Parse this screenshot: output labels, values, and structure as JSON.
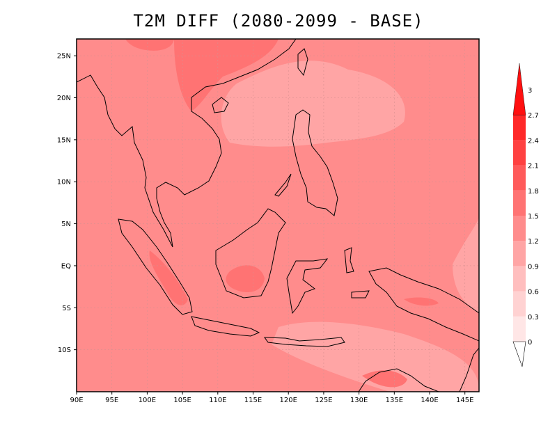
{
  "title": "T2M DIFF (2080-2099 - BASE)",
  "map": {
    "lon_range": [
      90,
      147
    ],
    "lat_range": [
      -15,
      27
    ],
    "lon_ticks": [
      {
        "value": 90,
        "label": "90E"
      },
      {
        "value": 95,
        "label": "95E"
      },
      {
        "value": 100,
        "label": "100E"
      },
      {
        "value": 105,
        "label": "105E"
      },
      {
        "value": 110,
        "label": "110E"
      },
      {
        "value": 115,
        "label": "115E"
      },
      {
        "value": 120,
        "label": "120E"
      },
      {
        "value": 125,
        "label": "125E"
      },
      {
        "value": 130,
        "label": "130E"
      },
      {
        "value": 135,
        "label": "135E"
      },
      {
        "value": 140,
        "label": "140E"
      },
      {
        "value": 145,
        "label": "145E"
      }
    ],
    "lat_ticks": [
      {
        "value": 25,
        "label": "25N"
      },
      {
        "value": 20,
        "label": "20N"
      },
      {
        "value": 15,
        "label": "15N"
      },
      {
        "value": 10,
        "label": "10N"
      },
      {
        "value": 5,
        "label": "5N"
      },
      {
        "value": 0,
        "label": "EQ"
      },
      {
        "value": -5,
        "label": "5S"
      },
      {
        "value": -10,
        "label": "10S"
      }
    ],
    "background_color": "#FF8C8C"
  },
  "colorbar": {
    "levels": [
      "0",
      "0.3",
      "0.6",
      "0.9",
      "1.2",
      "1.5",
      "1.8",
      "2.1",
      "2.4",
      "2.7",
      "3"
    ],
    "colors": [
      "#FFE6E6",
      "#FFD2D2",
      "#FFBEBE",
      "#FFA5A5",
      "#FF8C8C",
      "#FF7373",
      "#FF5A5A",
      "#FF4141",
      "#FF2828",
      "#FF1010"
    ]
  }
}
